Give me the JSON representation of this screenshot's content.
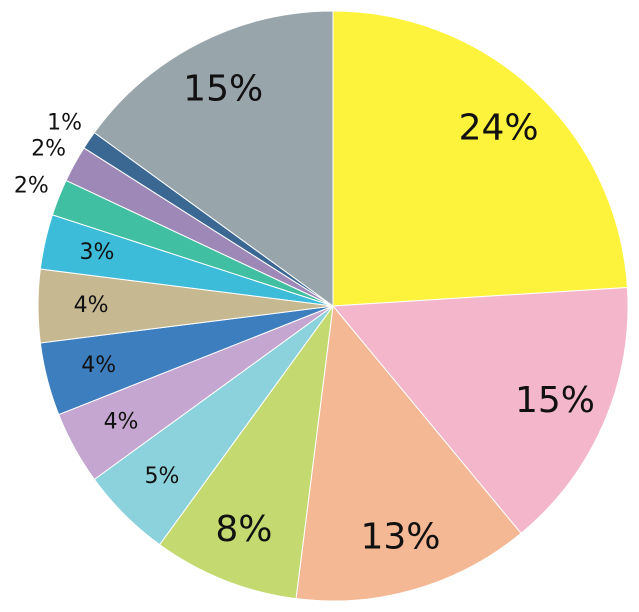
{
  "chart_data": {
    "type": "pie",
    "values": [
      24,
      15,
      13,
      8,
      5,
      4,
      4,
      4,
      3,
      2,
      2,
      1,
      15
    ],
    "value_labels": [
      "24%",
      "15%",
      "13%",
      "8%",
      "5%",
      "4%",
      "4%",
      "4%",
      "3%",
      "2%",
      "2%",
      "1%",
      "15%"
    ],
    "colors": [
      "#fdf23c",
      "#f3b6cb",
      "#f4b894",
      "#c4da70",
      "#8bd2dc",
      "#c4a6d0",
      "#3d7ebf",
      "#c6b891",
      "#3cbcd9",
      "#41bfa3",
      "#9d88b8",
      "#3b6893",
      "#98a5ab"
    ]
  }
}
